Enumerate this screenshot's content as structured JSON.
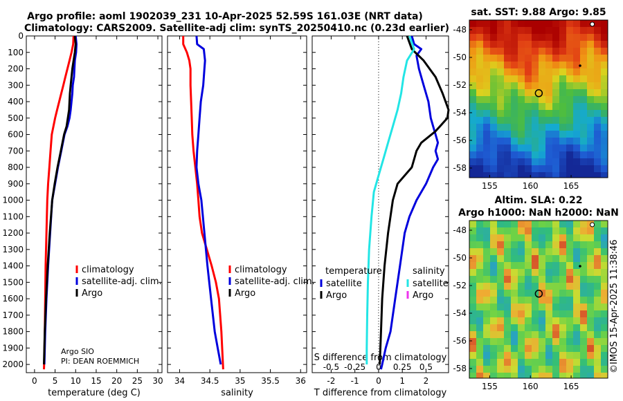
{
  "titles": {
    "line1": "Argo profile: aoml 1902039_231 10-Apr-2025 52.59S 161.03E (NRT data)",
    "line2": "Climatology: CARS2009. Satellite-adj clim: synTS_20250410.nc (0.23d earlier)",
    "sst_title": "sat. SST: 9.88 Argo: 9.85",
    "sla_title1": "Altim. SLA: 0.22",
    "sla_title2": "Argo h1000: NaN h2000: NaN",
    "stamp": "©IMOS 15-Apr-2025 11:38:46"
  },
  "credits": {
    "line1": "Argo SIO",
    "line2": "PI: DEAN ROEMMICH"
  },
  "colors": {
    "climatology": "#ff0000",
    "satellite": "#0000dd",
    "argo": "#000000",
    "sat_salinity": "#22e5e5",
    "argo_salinity": "#ee33ee"
  },
  "legend_panels_1_2": [
    {
      "label": "climatology",
      "color": "#ff0000"
    },
    {
      "label": "satellite-adj. clim.",
      "color": "#0000dd"
    },
    {
      "label": "Argo",
      "color": "#000000"
    }
  ],
  "legend_panel_3": {
    "temperature_header": "temperature",
    "salinity_header": "salinity",
    "temperature_items": [
      {
        "label": "satellite",
        "color": "#0000dd"
      },
      {
        "label": "Argo",
        "color": "#000000"
      }
    ],
    "salinity_items": [
      {
        "label": "satellite",
        "color": "#22e5e5"
      },
      {
        "label": "Argo",
        "color": "#ee33ee"
      }
    ]
  },
  "chart_data": [
    {
      "type": "line",
      "title": "",
      "xlabel": "temperature (deg C)",
      "ylabel": "",
      "xlim": [
        -2,
        31
      ],
      "ylim": [
        2050,
        0
      ],
      "xticks": [
        0,
        5,
        10,
        15,
        20,
        25,
        30
      ],
      "yticks": [
        0,
        100,
        200,
        300,
        400,
        500,
        600,
        700,
        800,
        900,
        1000,
        1100,
        1200,
        1300,
        1400,
        1500,
        1600,
        1700,
        1800,
        1900,
        2000
      ],
      "series": [
        {
          "name": "climatology",
          "color": "#ff0000",
          "x": [
            9.5,
            9.4,
            9.0,
            8.5,
            8.0,
            7.5,
            7.0,
            6.5,
            6.0,
            5.5,
            5.0,
            4.6,
            4.2,
            3.9,
            3.6,
            3.3,
            3.1,
            2.9,
            2.7,
            2.6,
            2.5,
            2.4,
            2.3
          ],
          "y": [
            0,
            50,
            100,
            150,
            200,
            250,
            300,
            350,
            400,
            450,
            500,
            550,
            600,
            700,
            800,
            900,
            1000,
            1200,
            1400,
            1600,
            1800,
            1950,
            2030
          ]
        },
        {
          "name": "satellite-adj. clim.",
          "color": "#0000dd",
          "x": [
            10.0,
            10.2,
            10.1,
            9.8,
            9.7,
            9.6,
            9.3,
            9.2,
            9.0,
            8.8,
            8.5,
            8.0,
            7.3,
            6.5,
            5.7,
            5.0,
            4.3,
            3.8,
            3.3,
            2.9,
            2.6,
            2.4
          ],
          "y": [
            0,
            50,
            100,
            150,
            200,
            250,
            300,
            350,
            400,
            450,
            500,
            550,
            600,
            700,
            800,
            900,
            1000,
            1200,
            1400,
            1600,
            1800,
            2000
          ]
        },
        {
          "name": "Argo",
          "color": "#000000",
          "x": [
            9.8,
            10.0,
            9.8,
            9.5,
            9.2,
            9.0,
            8.8,
            8.6,
            8.5,
            8.4,
            8.1,
            7.8,
            7.2,
            6.4,
            5.6,
            4.9,
            4.3,
            3.7,
            3.2,
            2.8,
            2.5,
            2.3
          ],
          "y": [
            0,
            50,
            100,
            150,
            200,
            250,
            300,
            350,
            400,
            450,
            500,
            550,
            600,
            700,
            800,
            900,
            1000,
            1200,
            1400,
            1600,
            1800,
            2000
          ]
        }
      ]
    },
    {
      "type": "line",
      "title": "",
      "xlabel": "salinity",
      "ylabel": "",
      "xlim": [
        33.8,
        36.1
      ],
      "ylim": [
        2050,
        0
      ],
      "xticks": [
        34,
        34.5,
        35,
        35.5,
        36
      ],
      "xticklabels": [
        "34",
        "34.5",
        "35",
        "35.5",
        "36"
      ],
      "series": [
        {
          "name": "climatology",
          "color": "#ff0000",
          "x": [
            34.06,
            34.06,
            34.12,
            34.16,
            34.18,
            34.18,
            34.19,
            34.2,
            34.21,
            34.23,
            34.26,
            34.29,
            34.31,
            34.33,
            34.37,
            34.45,
            34.53,
            34.6,
            34.65,
            34.69,
            34.72
          ],
          "y": [
            0,
            50,
            100,
            150,
            200,
            300,
            400,
            500,
            600,
            700,
            800,
            900,
            1000,
            1100,
            1200,
            1300,
            1400,
            1500,
            1600,
            1800,
            2030
          ]
        },
        {
          "name": "satellite-adj. clim.",
          "color": "#0000dd",
          "x": [
            34.28,
            34.29,
            34.4,
            34.42,
            34.41,
            34.39,
            34.35,
            34.33,
            34.31,
            34.29,
            34.28,
            34.31,
            34.36,
            34.41,
            34.46,
            34.52,
            34.58,
            34.63,
            34.68
          ],
          "y": [
            0,
            50,
            80,
            150,
            200,
            300,
            400,
            500,
            600,
            700,
            800,
            900,
            1000,
            1200,
            1400,
            1600,
            1800,
            1900,
            2000
          ]
        }
      ]
    },
    {
      "type": "line",
      "title": "",
      "xlabel": "T difference from climatology",
      "xlabel2": "S difference from climatology",
      "xlim": [
        -2.8,
        2.95
      ],
      "ylim": [
        2050,
        0
      ],
      "xticks": [
        -2,
        -1,
        0,
        1,
        2
      ],
      "xticklabels": [
        "-2",
        "-1",
        "0",
        "1",
        "2"
      ],
      "sticks": [
        {
          "v": -0.5,
          "l": "-0.5"
        },
        {
          "v": -0.25,
          "l": "-0.25"
        },
        {
          "v": 0,
          "l": "0"
        },
        {
          "v": 0.25,
          "l": "0.25"
        },
        {
          "v": 0.5,
          "l": "0.5"
        }
      ],
      "series": [
        {
          "name": "temperature satellite",
          "color": "#0000dd",
          "x": [
            1.4,
            1.5,
            1.8,
            1.6,
            1.7,
            1.9,
            2.1,
            2.2,
            2.3,
            2.4,
            2.5,
            2.4,
            2.5,
            2.3,
            2.0,
            1.6,
            1.3,
            1.1,
            0.9,
            0.7,
            0.5,
            0.3,
            0.15,
            0.1
          ],
          "y": [
            0,
            50,
            80,
            120,
            200,
            300,
            400,
            500,
            550,
            600,
            650,
            700,
            750,
            800,
            900,
            1000,
            1100,
            1200,
            1400,
            1600,
            1800,
            1900,
            2000,
            2030
          ]
        },
        {
          "name": "temperature Argo",
          "color": "#000000",
          "x": [
            1.2,
            1.4,
            1.9,
            2.4,
            2.7,
            2.95,
            2.9,
            2.4,
            1.8,
            1.6,
            1.4,
            0.8,
            0.6,
            0.4,
            0.25,
            0.15,
            0.1,
            0.05
          ],
          "y": [
            0,
            80,
            150,
            250,
            350,
            450,
            500,
            580,
            650,
            700,
            800,
            900,
            1000,
            1200,
            1400,
            1600,
            1800,
            2000
          ]
        },
        {
          "name": "salinity satellite",
          "color": "#22e5e5",
          "x": [
            1.3,
            1.5,
            1.2,
            1.05,
            0.95,
            0.8,
            0.6,
            0.4,
            0.2,
            0.0,
            -0.2,
            -0.3,
            -0.4,
            -0.45,
            -0.48,
            -0.5,
            -0.5
          ],
          "y": [
            0,
            80,
            150,
            250,
            350,
            450,
            550,
            650,
            750,
            850,
            950,
            1100,
            1300,
            1500,
            1700,
            1900,
            2000
          ]
        }
      ]
    }
  ],
  "maps": [
    {
      "xticks": [
        155,
        160,
        165
      ],
      "yticks": [
        -48,
        -50,
        -52,
        -54,
        -56,
        -58
      ],
      "lon_range": [
        152.5,
        169.5
      ],
      "lat_range": [
        -47.3,
        -58.7
      ]
    },
    {
      "xticks": [
        155,
        160,
        165
      ],
      "yticks": [
        -48,
        -50,
        -52,
        -54,
        -56,
        -58
      ],
      "lon_range": [
        152.5,
        169.5
      ],
      "lat_range": [
        -47.3,
        -58.7
      ]
    }
  ]
}
